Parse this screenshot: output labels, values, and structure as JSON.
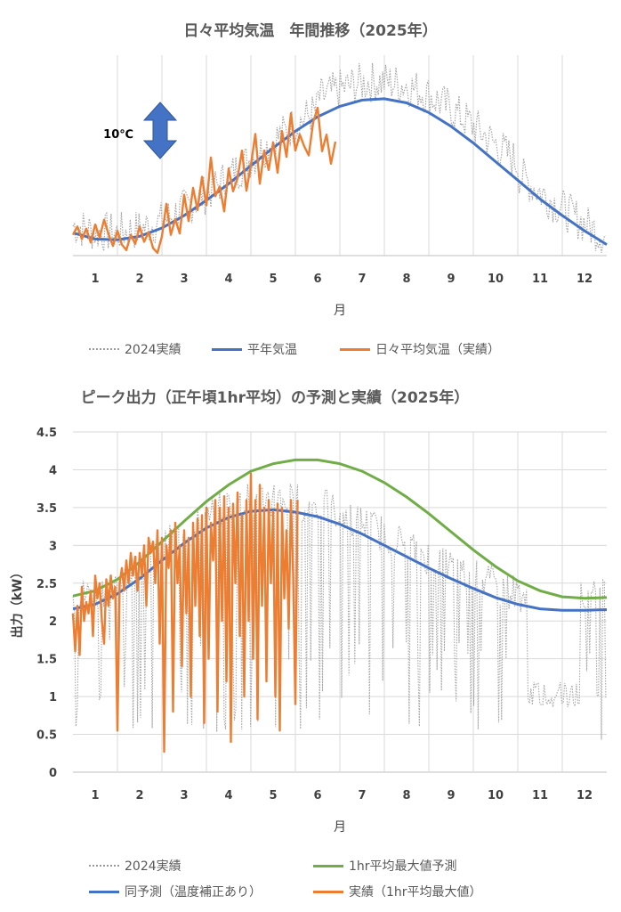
{
  "chart_data": [
    {
      "type": "line",
      "title": "日々平均気温　年間推移（2025年）",
      "xlabel": "月",
      "ylabel": "",
      "x_ticks": [
        "1",
        "2",
        "3",
        "4",
        "5",
        "6",
        "7",
        "8",
        "9",
        "10",
        "11",
        "12"
      ],
      "annotation": "10℃",
      "legend_position": "bottom",
      "grid": "vertical",
      "series": [
        {
          "name": "2024実績",
          "style": "dotted",
          "color": "#A6A6A6"
        },
        {
          "name": "平年気温",
          "style": "solid",
          "color": "#4472C4",
          "points": [
            [
              0.5,
              5.3
            ],
            [
              1,
              4.4
            ],
            [
              1.5,
              4.3
            ],
            [
              2,
              4.8
            ],
            [
              2.5,
              6.0
            ],
            [
              3,
              7.8
            ],
            [
              3.5,
              10.0
            ],
            [
              4,
              12.4
            ],
            [
              4.5,
              15.0
            ],
            [
              5,
              17.6
            ],
            [
              5.5,
              20.0
            ],
            [
              6,
              22.1
            ],
            [
              6.5,
              23.6
            ],
            [
              7,
              24.5
            ],
            [
              7.5,
              24.7
            ],
            [
              8,
              24.1
            ],
            [
              8.5,
              22.7
            ],
            [
              9,
              20.7
            ],
            [
              9.5,
              18.3
            ],
            [
              10,
              15.6
            ],
            [
              10.5,
              12.9
            ],
            [
              11,
              10.2
            ],
            [
              11.5,
              7.8
            ],
            [
              12,
              5.6
            ],
            [
              12.5,
              3.6
            ]
          ]
        },
        {
          "name": "日々平均気温（実績）",
          "style": "solid",
          "color": "#ED7D31",
          "points": [
            [
              0.5,
              5.0
            ],
            [
              0.6,
              6.2
            ],
            [
              0.7,
              4.4
            ],
            [
              0.8,
              5.9
            ],
            [
              0.9,
              3.9
            ],
            [
              1.0,
              6.5
            ],
            [
              1.1,
              4.6
            ],
            [
              1.2,
              7.2
            ],
            [
              1.3,
              5.1
            ],
            [
              1.4,
              3.4
            ],
            [
              1.5,
              5.6
            ],
            [
              1.6,
              3.6
            ],
            [
              1.7,
              2.8
            ],
            [
              1.8,
              5.0
            ],
            [
              1.9,
              3.7
            ],
            [
              2.0,
              6.2
            ],
            [
              2.1,
              4.0
            ],
            [
              2.2,
              5.4
            ],
            [
              2.3,
              3.1
            ],
            [
              2.4,
              2.4
            ],
            [
              2.5,
              4.8
            ],
            [
              2.6,
              9.5
            ],
            [
              2.7,
              5.0
            ],
            [
              2.8,
              7.3
            ],
            [
              2.9,
              5.2
            ],
            [
              3.0,
              10.8
            ],
            [
              3.1,
              7.0
            ],
            [
              3.2,
              11.8
            ],
            [
              3.3,
              8.6
            ],
            [
              3.4,
              13.4
            ],
            [
              3.5,
              9.3
            ],
            [
              3.6,
              16.2
            ],
            [
              3.7,
              10.6
            ],
            [
              3.8,
              12.0
            ],
            [
              3.9,
              8.4
            ],
            [
              4.0,
              14.6
            ],
            [
              4.1,
              11.3
            ],
            [
              4.2,
              13.2
            ],
            [
              4.3,
              17.2
            ],
            [
              4.4,
              11.4
            ],
            [
              4.5,
              15.1
            ],
            [
              4.6,
              19.6
            ],
            [
              4.7,
              12.4
            ],
            [
              4.8,
              17.2
            ],
            [
              4.9,
              14.4
            ],
            [
              5.0,
              18.4
            ],
            [
              5.1,
              14.0
            ],
            [
              5.2,
              20.0
            ],
            [
              5.3,
              16.3
            ],
            [
              5.4,
              22.6
            ],
            [
              5.5,
              17.2
            ],
            [
              5.6,
              19.5
            ],
            [
              5.7,
              17.8
            ],
            [
              5.8,
              16.5
            ],
            [
              5.9,
              21.3
            ],
            [
              6.0,
              23.4
            ],
            [
              6.1,
              17.1
            ],
            [
              6.2,
              19.5
            ],
            [
              6.3,
              15.3
            ],
            [
              6.4,
              18.5
            ]
          ]
        }
      ]
    },
    {
      "type": "line",
      "title": "ピーク出力（正午頃1hr平均）の予測と実績（2025年）",
      "xlabel": "月",
      "ylabel": "出力（kW）",
      "ylim": [
        0,
        4.5
      ],
      "y_ticks": [
        "0",
        "0.5",
        "1",
        "1.5",
        "2",
        "2.5",
        "3",
        "3.5",
        "4",
        "4.5"
      ],
      "x_ticks": [
        "1",
        "2",
        "3",
        "4",
        "5",
        "6",
        "7",
        "8",
        "9",
        "10",
        "11",
        "12"
      ],
      "legend_position": "bottom",
      "grid": "both",
      "series": [
        {
          "name": "2024実績",
          "style": "dotted",
          "color": "#A6A6A6"
        },
        {
          "name": "1hr平均最大値予測",
          "style": "solid",
          "color": "#70AD47",
          "points": [
            [
              0.5,
              2.33
            ],
            [
              1,
              2.4
            ],
            [
              1.5,
              2.55
            ],
            [
              2,
              2.78
            ],
            [
              2.5,
              3.05
            ],
            [
              3,
              3.32
            ],
            [
              3.5,
              3.58
            ],
            [
              4,
              3.8
            ],
            [
              4.5,
              3.98
            ],
            [
              5,
              4.08
            ],
            [
              5.5,
              4.13
            ],
            [
              6,
              4.13
            ],
            [
              6.5,
              4.08
            ],
            [
              7,
              3.98
            ],
            [
              7.5,
              3.83
            ],
            [
              8,
              3.64
            ],
            [
              8.5,
              3.42
            ],
            [
              9,
              3.18
            ],
            [
              9.5,
              2.94
            ],
            [
              10,
              2.72
            ],
            [
              10.5,
              2.53
            ],
            [
              11,
              2.4
            ],
            [
              11.5,
              2.32
            ],
            [
              12,
              2.3
            ],
            [
              12.5,
              2.31
            ]
          ]
        },
        {
          "name": "同予測（温度補正あり）",
          "style": "solid",
          "color": "#4472C4",
          "points": [
            [
              0.5,
              2.16
            ],
            [
              1,
              2.22
            ],
            [
              1.5,
              2.36
            ],
            [
              2,
              2.56
            ],
            [
              2.5,
              2.8
            ],
            [
              3,
              3.03
            ],
            [
              3.5,
              3.23
            ],
            [
              4,
              3.37
            ],
            [
              4.5,
              3.45
            ],
            [
              5,
              3.47
            ],
            [
              5.5,
              3.44
            ],
            [
              6,
              3.38
            ],
            [
              6.5,
              3.28
            ],
            [
              7,
              3.15
            ],
            [
              7.5,
              3.0
            ],
            [
              8,
              2.85
            ],
            [
              8.5,
              2.7
            ],
            [
              9,
              2.56
            ],
            [
              9.5,
              2.43
            ],
            [
              10,
              2.31
            ],
            [
              10.5,
              2.22
            ],
            [
              11,
              2.16
            ],
            [
              11.5,
              2.14
            ],
            [
              12,
              2.14
            ],
            [
              12.5,
              2.15
            ]
          ]
        },
        {
          "name": "実績（1hr平均最大値）",
          "style": "solid",
          "color": "#ED7D31",
          "points": [
            [
              0.5,
              2.1
            ],
            [
              0.55,
              1.6
            ],
            [
              0.6,
              2.2
            ],
            [
              0.65,
              1.55
            ],
            [
              0.7,
              2.45
            ],
            [
              0.75,
              2.0
            ],
            [
              0.8,
              2.25
            ],
            [
              0.85,
              2.1
            ],
            [
              0.9,
              2.4
            ],
            [
              0.95,
              1.8
            ],
            [
              1.0,
              2.6
            ],
            [
              1.05,
              2.3
            ],
            [
              1.1,
              2.5
            ],
            [
              1.15,
              2.0
            ],
            [
              1.2,
              1.7
            ],
            [
              1.25,
              2.55
            ],
            [
              1.3,
              2.2
            ],
            [
              1.35,
              2.6
            ],
            [
              1.4,
              2.3
            ],
            [
              1.45,
              2.45
            ],
            [
              1.5,
              0.55
            ],
            [
              1.55,
              2.5
            ],
            [
              1.6,
              2.7
            ],
            [
              1.65,
              2.4
            ],
            [
              1.7,
              2.8
            ],
            [
              1.75,
              2.5
            ],
            [
              1.8,
              2.9
            ],
            [
              1.85,
              2.6
            ],
            [
              1.9,
              2.85
            ],
            [
              1.95,
              2.4
            ],
            [
              2.0,
              2.9
            ],
            [
              2.05,
              2.6
            ],
            [
              2.1,
              3.0
            ],
            [
              2.15,
              2.2
            ],
            [
              2.2,
              3.1
            ],
            [
              2.25,
              2.9
            ],
            [
              2.3,
              3.05
            ],
            [
              2.35,
              2.5
            ],
            [
              2.4,
              3.2
            ],
            [
              2.45,
              1.7
            ],
            [
              2.5,
              3.1
            ],
            [
              2.55,
              0.27
            ],
            [
              2.6,
              3.0
            ],
            [
              2.65,
              2.7
            ],
            [
              2.7,
              3.2
            ],
            [
              2.75,
              0.8
            ],
            [
              2.8,
              3.3
            ],
            [
              2.85,
              2.5
            ],
            [
              2.9,
              3.0
            ],
            [
              2.95,
              1.4
            ],
            [
              3.0,
              3.2
            ],
            [
              3.05,
              2.1
            ],
            [
              3.1,
              3.1
            ],
            [
              3.15,
              1.0
            ],
            [
              3.2,
              3.3
            ],
            [
              3.25,
              2.2
            ],
            [
              3.3,
              3.35
            ],
            [
              3.35,
              1.8
            ],
            [
              3.4,
              3.4
            ],
            [
              3.45,
              0.65
            ],
            [
              3.5,
              3.5
            ],
            [
              3.55,
              1.5
            ],
            [
              3.6,
              3.3
            ],
            [
              3.65,
              2.8
            ],
            [
              3.7,
              3.6
            ],
            [
              3.75,
              0.8
            ],
            [
              3.8,
              3.5
            ],
            [
              3.85,
              2.0
            ],
            [
              3.9,
              3.65
            ],
            [
              3.95,
              1.2
            ],
            [
              4.0,
              3.5
            ],
            [
              4.05,
              0.4
            ],
            [
              4.1,
              3.55
            ],
            [
              4.15,
              2.5
            ],
            [
              4.2,
              3.7
            ],
            [
              4.25,
              1.8
            ],
            [
              4.3,
              3.4
            ],
            [
              4.35,
              1.0
            ],
            [
              4.4,
              3.6
            ],
            [
              4.45,
              2.0
            ],
            [
              4.5,
              3.95
            ],
            [
              4.55,
              1.5
            ],
            [
              4.6,
              3.6
            ],
            [
              4.65,
              0.7
            ],
            [
              4.7,
              3.8
            ],
            [
              4.75,
              2.2
            ],
            [
              4.8,
              3.5
            ],
            [
              4.85,
              1.2
            ],
            [
              4.9,
              3.6
            ],
            [
              4.95,
              2.5
            ],
            [
              5.0,
              3.45
            ],
            [
              5.05,
              1.0
            ],
            [
              5.1,
              3.55
            ],
            [
              5.15,
              0.55
            ],
            [
              5.2,
              3.5
            ],
            [
              5.25,
              2.3
            ],
            [
              5.3,
              3.2
            ],
            [
              5.35,
              1.9
            ],
            [
              5.4,
              3.6
            ],
            [
              5.45,
              2.6
            ],
            [
              5.5,
              0.9
            ],
            [
              5.55,
              3.6
            ]
          ]
        }
      ]
    }
  ]
}
